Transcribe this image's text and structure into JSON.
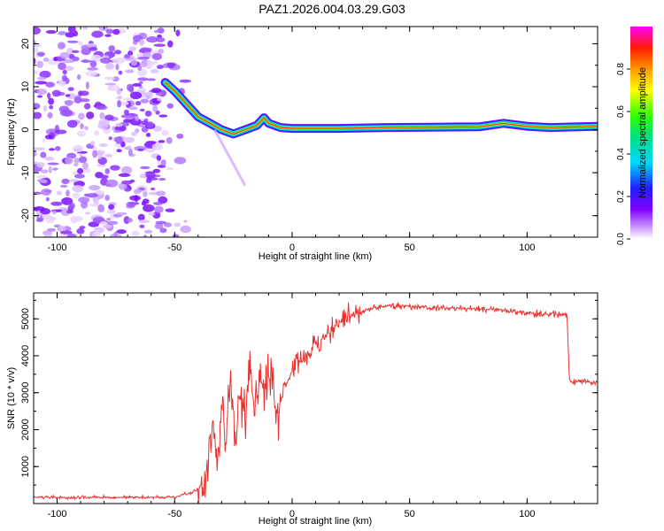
{
  "title": "PAZ1.2026.004.03.29.G03",
  "chart_data": [
    {
      "type": "heatmap",
      "name": "spectrogram",
      "xlabel": "Height of straight line (km)",
      "ylabel": "Frequency (Hz)",
      "xlim": [
        -110,
        130
      ],
      "ylim": [
        -25,
        24
      ],
      "xticks": [
        -100,
        -50,
        0,
        50,
        100
      ],
      "yticks": [
        20,
        10,
        0,
        -10,
        -20
      ],
      "noise_region": {
        "x": [
          -110,
          -45
        ],
        "y": [
          -25,
          24
        ]
      },
      "ridge": {
        "x": [
          -54,
          -50,
          -45,
          -40,
          -35,
          -30,
          -25,
          -20,
          -15,
          -12,
          -10,
          -5,
          0,
          20,
          40,
          60,
          80,
          90,
          100,
          110,
          130
        ],
        "y": [
          11,
          9,
          6,
          3,
          1.5,
          0,
          -1,
          0,
          1,
          2.8,
          1.5,
          0.5,
          0.3,
          0.3,
          0.5,
          0.6,
          0.7,
          1.5,
          0.8,
          0.5,
          0.8
        ]
      },
      "colorbar": {
        "label": "Normalized spectral amplitude",
        "ticks": [
          "0.0",
          "0.2",
          "0.4",
          "0.6",
          "0.8"
        ],
        "range": [
          0,
          1
        ]
      }
    },
    {
      "type": "line",
      "name": "snr",
      "xlabel": "Height of straight line (km)",
      "ylabel": "SNR (10 * v/v)",
      "xlim": [
        -110,
        130
      ],
      "ylim": [
        0,
        5700
      ],
      "xticks": [
        -100,
        -50,
        0,
        50,
        100
      ],
      "yticks": [
        1000,
        2000,
        3000,
        4000,
        5000
      ],
      "color": "#e8312f",
      "series": [
        {
          "name": "SNR",
          "x": [
            -110,
            -90,
            -70,
            -50,
            -42,
            -38,
            -36,
            -34,
            -32,
            -30,
            -28,
            -26,
            -24,
            -22,
            -20,
            -18,
            -16,
            -14,
            -12,
            -10,
            -8,
            -6,
            -4,
            -2,
            0,
            2,
            4,
            6,
            8,
            10,
            14,
            18,
            22,
            26,
            30,
            35,
            40,
            50,
            60,
            70,
            80,
            90,
            100,
            110,
            117,
            118,
            120,
            125,
            130
          ],
          "y": [
            170,
            160,
            170,
            170,
            320,
            500,
            1300,
            2300,
            900,
            2600,
            1800,
            3300,
            2000,
            3000,
            2200,
            3600,
            2500,
            3300,
            3200,
            3400,
            3300,
            2200,
            3100,
            3300,
            3600,
            3900,
            3800,
            4000,
            4100,
            4300,
            4500,
            4800,
            5000,
            5100,
            5200,
            5300,
            5350,
            5350,
            5300,
            5300,
            5250,
            5250,
            5150,
            5150,
            5100,
            3350,
            3300,
            3300,
            3250
          ]
        }
      ]
    }
  ]
}
